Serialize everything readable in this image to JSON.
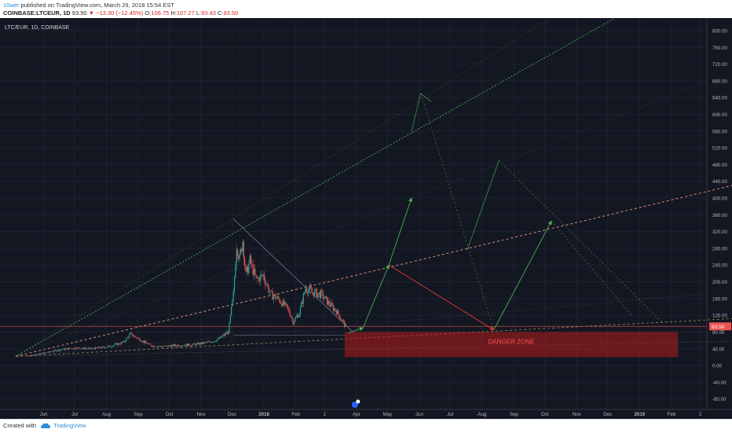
{
  "header": {
    "publisher": "10wer",
    "published_text": "published on TradingView.com, March 29, 2018 15:54 EST",
    "symbol": "COINBASE:LTCEUR, 1D",
    "last": "93.50",
    "change": "−13.30 (−12.45%)",
    "o_label": "O:",
    "o_val": "106.75",
    "h_label": "H:",
    "h_val": "107.27",
    "l_label": "L:",
    "l_val": "93.43",
    "c_label": "C:",
    "c_val": "93.50"
  },
  "footer": {
    "created_with": "Created with",
    "brand": "TradingView"
  },
  "colors": {
    "background": "#131722",
    "up": "#26a69a",
    "down": "#ef5350",
    "green_line": "#4caf50",
    "orange_line": "#e8a07a",
    "red_zone": "#b71c1c"
  },
  "chart_data": {
    "type": "candlestick",
    "title": "LTC/EUR, 1D, COINBASE",
    "x_ticks": [
      "Jun",
      "Jul",
      "Aug",
      "Sep",
      "Oct",
      "Nov",
      "Dec",
      "2018",
      "Feb",
      "2",
      "Apr",
      "May",
      "Jun",
      "Jul",
      "Aug",
      "Sep",
      "Oct",
      "Nov",
      "Dec",
      "2019",
      "Feb",
      "2"
    ],
    "y_ticks": [
      "800.00",
      "760.00",
      "720.00",
      "680.00",
      "640.00",
      "600.00",
      "560.00",
      "520.00",
      "480.00",
      "440.00",
      "400.00",
      "360.00",
      "320.00",
      "280.00",
      "240.00",
      "200.00",
      "160.00",
      "120.00",
      "80.00",
      "40.00",
      "0.00",
      "-40.00",
      "-80.00"
    ],
    "ylim": [
      -105,
      830
    ],
    "last_price_label": "93.50",
    "zone_label": "DANGER ZONE",
    "zone_range": [
      20,
      80
    ],
    "price_path": [
      [
        "2017-05-25",
        23
      ],
      [
        "2017-06-10",
        30
      ],
      [
        "2017-06-25",
        38
      ],
      [
        "2017-07-10",
        42
      ],
      [
        "2017-07-25",
        40
      ],
      [
        "2017-08-10",
        45
      ],
      [
        "2017-08-25",
        55
      ],
      [
        "2017-09-01",
        75
      ],
      [
        "2017-09-10",
        62
      ],
      [
        "2017-09-20",
        48
      ],
      [
        "2017-10-01",
        45
      ],
      [
        "2017-10-15",
        48
      ],
      [
        "2017-11-01",
        50
      ],
      [
        "2017-11-15",
        55
      ],
      [
        "2017-11-25",
        62
      ],
      [
        "2017-12-05",
        80
      ],
      [
        "2017-12-10",
        170
      ],
      [
        "2017-12-13",
        290
      ],
      [
        "2017-12-16",
        255
      ],
      [
        "2017-12-19",
        300
      ],
      [
        "2017-12-22",
        215
      ],
      [
        "2017-12-26",
        250
      ],
      [
        "2018-01-01",
        205
      ],
      [
        "2018-01-08",
        215
      ],
      [
        "2018-01-15",
        170
      ],
      [
        "2018-01-22",
        160
      ],
      [
        "2018-02-01",
        135
      ],
      [
        "2018-02-06",
        105
      ],
      [
        "2018-02-12",
        125
      ],
      [
        "2018-02-18",
        185
      ],
      [
        "2018-02-25",
        175
      ],
      [
        "2018-03-05",
        170
      ],
      [
        "2018-03-12",
        150
      ],
      [
        "2018-03-20",
        130
      ],
      [
        "2018-03-25",
        110
      ],
      [
        "2018-03-29",
        93.5
      ]
    ],
    "projections": [
      {
        "type": "arrow",
        "color": "green",
        "from": [
          "2018-04-01",
          78
        ],
        "to": [
          "2018-04-15",
          90
        ]
      },
      {
        "type": "arrow",
        "color": "green",
        "from": [
          "2018-04-15",
          90
        ],
        "to": [
          "2018-05-10",
          240
        ]
      },
      {
        "type": "arrow",
        "color": "green",
        "from": [
          "2018-05-10",
          240
        ],
        "to": [
          "2018-06-01",
          400
        ]
      },
      {
        "type": "arrow",
        "color": "red",
        "from": [
          "2018-05-10",
          240
        ],
        "to": [
          "2018-08-20",
          85
        ]
      },
      {
        "type": "arrow",
        "color": "green",
        "from": [
          "2018-08-20",
          85
        ],
        "to": [
          "2018-10-15",
          345
        ]
      },
      {
        "type": "path",
        "color": "green",
        "points": [
          [
            "2018-07-25",
            275
          ],
          [
            "2018-08-25",
            490
          ]
        ]
      },
      {
        "type": "path",
        "color": "green",
        "points": [
          [
            "2018-06-01",
            560
          ],
          [
            "2018-06-10",
            650
          ],
          [
            "2018-06-20",
            630
          ]
        ]
      }
    ]
  }
}
